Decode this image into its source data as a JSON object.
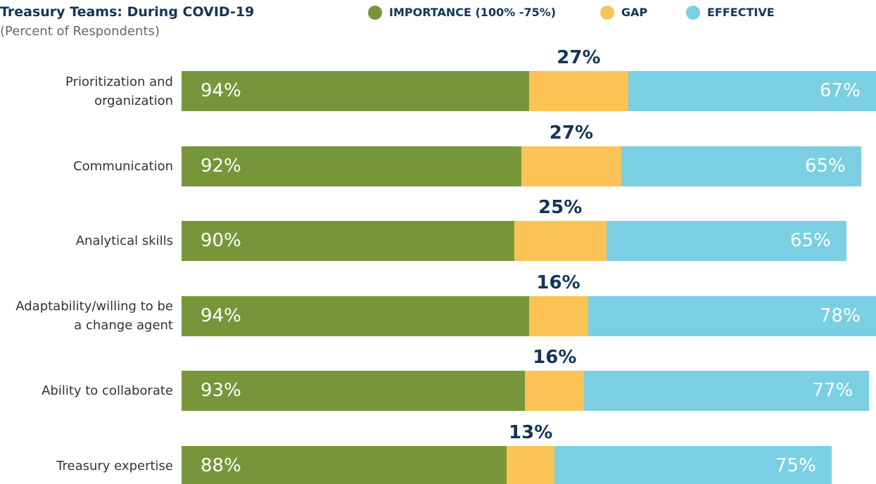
{
  "chart_data": {
    "type": "stacked-bar-horizontal",
    "title": "Treasury Teams: During COVID-19",
    "subtitle": "(Percent of Respondents)",
    "categories": [
      "Prioritization and organization",
      "Communication",
      "Analytical skills",
      "Adaptability/willing to be a change agent",
      "Ability to collaborate",
      "Treasury expertise"
    ],
    "series": [
      {
        "name": "IMPORTANCE (100% -75%)",
        "color": "#77963a",
        "values": [
          94,
          92,
          90,
          94,
          93,
          88
        ],
        "value_labels": [
          "94%",
          "92%",
          "90%",
          "94%",
          "93%",
          "88%"
        ]
      },
      {
        "name": "GAP",
        "color": "#fbc355",
        "values": [
          27,
          27,
          25,
          16,
          16,
          13
        ],
        "value_labels": [
          "27%",
          "27%",
          "25%",
          "16%",
          "16%",
          "13%"
        ]
      },
      {
        "name": "EFFECTIVE",
        "color": "#7ad0e2",
        "values": [
          67,
          65,
          65,
          78,
          77,
          75
        ],
        "value_labels": [
          "67%",
          "65%",
          "65%",
          "78%",
          "77%",
          "75%"
        ]
      }
    ]
  }
}
